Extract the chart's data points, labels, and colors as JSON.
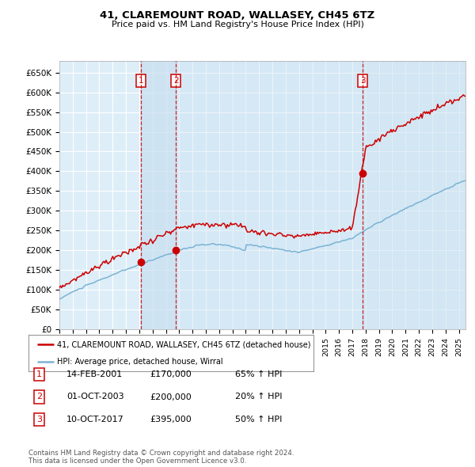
{
  "title": "41, CLAREMOUNT ROAD, WALLASEY, CH45 6TZ",
  "subtitle": "Price paid vs. HM Land Registry's House Price Index (HPI)",
  "yticks": [
    0,
    50000,
    100000,
    150000,
    200000,
    250000,
    300000,
    350000,
    400000,
    450000,
    500000,
    550000,
    600000,
    650000
  ],
  "ytick_labels": [
    "£0",
    "£50K",
    "£100K",
    "£150K",
    "£200K",
    "£250K",
    "£300K",
    "£350K",
    "£400K",
    "£450K",
    "£500K",
    "£550K",
    "£600K",
    "£650K"
  ],
  "hpi_color": "#7ab3d4",
  "price_color": "#cc0000",
  "vline_color": "#cc0000",
  "background_color": "#ddeef8",
  "grid_color": "#ffffff",
  "span_color": "#c8dff0",
  "sale_dates": [
    2001.12,
    2003.75,
    2017.78
  ],
  "sale_prices": [
    170000,
    200000,
    395000
  ],
  "sale_labels": [
    "1",
    "2",
    "3"
  ],
  "xmin": 1995,
  "xmax": 2025.5,
  "ymin": 0,
  "ymax": 680000,
  "legend_entries": [
    "41, CLAREMOUNT ROAD, WALLASEY, CH45 6TZ (detached house)",
    "HPI: Average price, detached house, Wirral"
  ],
  "table_rows": [
    {
      "label": "1",
      "date": "14-FEB-2001",
      "price": "£170,000",
      "hpi": "65% ↑ HPI"
    },
    {
      "label": "2",
      "date": "01-OCT-2003",
      "price": "£200,000",
      "hpi": "20% ↑ HPI"
    },
    {
      "label": "3",
      "date": "10-OCT-2017",
      "price": "£395,000",
      "hpi": "50% ↑ HPI"
    }
  ],
  "footer": "Contains HM Land Registry data © Crown copyright and database right 2024.\nThis data is licensed under the Open Government Licence v3.0."
}
